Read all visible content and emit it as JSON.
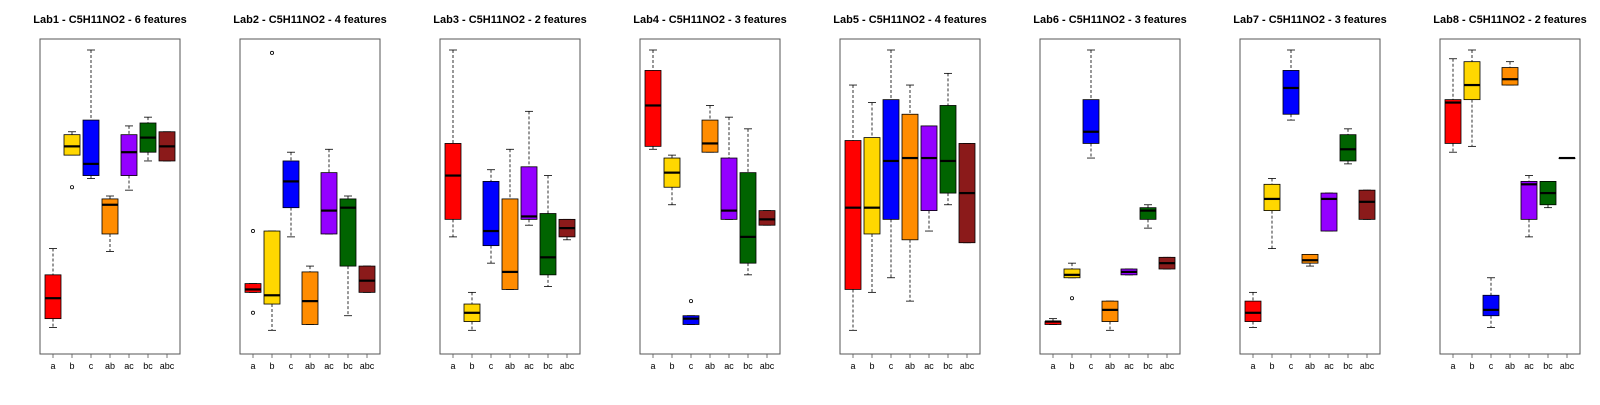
{
  "chart_data": [
    {
      "type": "box",
      "title": "Lab1 - C5H11NO2 - 6 features",
      "categories": [
        "a",
        "b",
        "c",
        "ab",
        "ac",
        "bc",
        "abc"
      ],
      "colors": [
        "#ff0000",
        "#ffd700",
        "#0000ff",
        "#ff8c00",
        "#9400ff",
        "#006400",
        "#8b1a1a"
      ],
      "ylim": [
        0,
        1
      ],
      "boxes": [
        {
          "whisker_low": 0.05,
          "q1": 0.08,
          "median": 0.15,
          "q3": 0.23,
          "whisker_high": 0.32,
          "outliers": []
        },
        {
          "whisker_low": 0.64,
          "q1": 0.64,
          "median": 0.67,
          "q3": 0.71,
          "whisker_high": 0.72,
          "outliers": [
            0.53
          ]
        },
        {
          "whisker_low": 0.56,
          "q1": 0.57,
          "median": 0.61,
          "q3": 0.76,
          "whisker_high": 1.0,
          "outliers": []
        },
        {
          "whisker_low": 0.31,
          "q1": 0.37,
          "median": 0.47,
          "q3": 0.49,
          "whisker_high": 0.5,
          "outliers": []
        },
        {
          "whisker_low": 0.52,
          "q1": 0.57,
          "median": 0.65,
          "q3": 0.71,
          "whisker_high": 0.74,
          "outliers": []
        },
        {
          "whisker_low": 0.62,
          "q1": 0.65,
          "median": 0.7,
          "q3": 0.75,
          "whisker_high": 0.77,
          "outliers": []
        },
        {
          "whisker_low": 0.62,
          "q1": 0.62,
          "median": 0.67,
          "q3": 0.72,
          "whisker_high": 0.72,
          "outliers": []
        }
      ]
    },
    {
      "type": "box",
      "title": "Lab2 - C5H11NO2 - 4 features",
      "categories": [
        "a",
        "b",
        "c",
        "ab",
        "ac",
        "bc",
        "abc"
      ],
      "colors": [
        "#ff0000",
        "#ffd700",
        "#0000ff",
        "#ff8c00",
        "#9400ff",
        "#006400",
        "#8b1a1a"
      ],
      "ylim": [
        0,
        1
      ],
      "boxes": [
        {
          "whisker_low": 0.17,
          "q1": 0.17,
          "median": 0.18,
          "q3": 0.2,
          "whisker_high": 0.2,
          "outliers": [
            0.38,
            0.1
          ]
        },
        {
          "whisker_low": 0.04,
          "q1": 0.13,
          "median": 0.16,
          "q3": 0.38,
          "whisker_high": 0.38,
          "outliers": [
            0.99
          ]
        },
        {
          "whisker_low": 0.36,
          "q1": 0.46,
          "median": 0.55,
          "q3": 0.62,
          "whisker_high": 0.65,
          "outliers": []
        },
        {
          "whisker_low": 0.06,
          "q1": 0.06,
          "median": 0.14,
          "q3": 0.24,
          "whisker_high": 0.26,
          "outliers": []
        },
        {
          "whisker_low": 0.37,
          "q1": 0.37,
          "median": 0.45,
          "q3": 0.58,
          "whisker_high": 0.66,
          "outliers": []
        },
        {
          "whisker_low": 0.09,
          "q1": 0.26,
          "median": 0.46,
          "q3": 0.49,
          "whisker_high": 0.5,
          "outliers": []
        },
        {
          "whisker_low": 0.17,
          "q1": 0.17,
          "median": 0.21,
          "q3": 0.26,
          "whisker_high": 0.26,
          "outliers": []
        }
      ]
    },
    {
      "type": "box",
      "title": "Lab3 - C5H11NO2 - 2 features",
      "categories": [
        "a",
        "b",
        "c",
        "ab",
        "ac",
        "bc",
        "abc"
      ],
      "colors": [
        "#ff0000",
        "#ffd700",
        "#0000ff",
        "#ff8c00",
        "#9400ff",
        "#006400",
        "#8b1a1a"
      ],
      "ylim": [
        0,
        1
      ],
      "boxes": [
        {
          "whisker_low": 0.36,
          "q1": 0.42,
          "median": 0.57,
          "q3": 0.68,
          "whisker_high": 1.0,
          "outliers": []
        },
        {
          "whisker_low": 0.04,
          "q1": 0.07,
          "median": 0.1,
          "q3": 0.13,
          "whisker_high": 0.17,
          "outliers": []
        },
        {
          "whisker_low": 0.27,
          "q1": 0.33,
          "median": 0.38,
          "q3": 0.55,
          "whisker_high": 0.59,
          "outliers": []
        },
        {
          "whisker_low": 0.18,
          "q1": 0.18,
          "median": 0.24,
          "q3": 0.49,
          "whisker_high": 0.66,
          "outliers": []
        },
        {
          "whisker_low": 0.4,
          "q1": 0.42,
          "median": 0.43,
          "q3": 0.6,
          "whisker_high": 0.79,
          "outliers": []
        },
        {
          "whisker_low": 0.19,
          "q1": 0.23,
          "median": 0.29,
          "q3": 0.44,
          "whisker_high": 0.57,
          "outliers": []
        },
        {
          "whisker_low": 0.35,
          "q1": 0.36,
          "median": 0.39,
          "q3": 0.42,
          "whisker_high": 0.42,
          "outliers": []
        }
      ]
    },
    {
      "type": "box",
      "title": "Lab4 - C5H11NO2 - 3 features",
      "categories": [
        "a",
        "b",
        "c",
        "ab",
        "ac",
        "bc",
        "abc"
      ],
      "colors": [
        "#ff0000",
        "#ffd700",
        "#0000ff",
        "#ff8c00",
        "#9400ff",
        "#006400",
        "#8b1a1a"
      ],
      "ylim": [
        0,
        1
      ],
      "boxes": [
        {
          "whisker_low": 0.66,
          "q1": 0.67,
          "median": 0.81,
          "q3": 0.93,
          "whisker_high": 1.0,
          "outliers": []
        },
        {
          "whisker_low": 0.47,
          "q1": 0.53,
          "median": 0.58,
          "q3": 0.63,
          "whisker_high": 0.64,
          "outliers": []
        },
        {
          "whisker_low": 0.06,
          "q1": 0.06,
          "median": 0.08,
          "q3": 0.09,
          "whisker_high": 0.09,
          "outliers": [
            0.14
          ]
        },
        {
          "whisker_low": 0.65,
          "q1": 0.65,
          "median": 0.68,
          "q3": 0.76,
          "whisker_high": 0.81,
          "outliers": []
        },
        {
          "whisker_low": 0.42,
          "q1": 0.42,
          "median": 0.45,
          "q3": 0.63,
          "whisker_high": 0.77,
          "outliers": []
        },
        {
          "whisker_low": 0.23,
          "q1": 0.27,
          "median": 0.36,
          "q3": 0.58,
          "whisker_high": 0.73,
          "outliers": []
        },
        {
          "whisker_low": 0.4,
          "q1": 0.4,
          "median": 0.42,
          "q3": 0.45,
          "whisker_high": 0.45,
          "outliers": []
        }
      ]
    },
    {
      "type": "box",
      "title": "Lab5 - C5H11NO2 - 4 features",
      "categories": [
        "a",
        "b",
        "c",
        "ab",
        "ac",
        "bc",
        "abc"
      ],
      "colors": [
        "#ff0000",
        "#ffd700",
        "#0000ff",
        "#ff8c00",
        "#9400ff",
        "#006400",
        "#8b1a1a"
      ],
      "ylim": [
        0,
        1
      ],
      "boxes": [
        {
          "whisker_low": 0.04,
          "q1": 0.18,
          "median": 0.46,
          "q3": 0.69,
          "whisker_high": 0.88,
          "outliers": []
        },
        {
          "whisker_low": 0.17,
          "q1": 0.37,
          "median": 0.46,
          "q3": 0.7,
          "whisker_high": 0.82,
          "outliers": []
        },
        {
          "whisker_low": 0.22,
          "q1": 0.42,
          "median": 0.62,
          "q3": 0.83,
          "whisker_high": 1.0,
          "outliers": []
        },
        {
          "whisker_low": 0.14,
          "q1": 0.35,
          "median": 0.63,
          "q3": 0.78,
          "whisker_high": 0.88,
          "outliers": []
        },
        {
          "whisker_low": 0.38,
          "q1": 0.45,
          "median": 0.63,
          "q3": 0.74,
          "whisker_high": 0.74,
          "outliers": []
        },
        {
          "whisker_low": 0.47,
          "q1": 0.51,
          "median": 0.62,
          "q3": 0.81,
          "whisker_high": 0.92,
          "outliers": []
        },
        {
          "whisker_low": 0.34,
          "q1": 0.34,
          "median": 0.51,
          "q3": 0.68,
          "whisker_high": 0.68,
          "outliers": []
        }
      ]
    },
    {
      "type": "box",
      "title": "Lab6 - C5H11NO2 - 3 features",
      "categories": [
        "a",
        "b",
        "c",
        "ab",
        "ac",
        "bc",
        "abc"
      ],
      "colors": [
        "#ff0000",
        "#ffd700",
        "#0000ff",
        "#ff8c00",
        "#9400ff",
        "#006400",
        "#8b1a1a"
      ],
      "ylim": [
        0,
        1
      ],
      "boxes": [
        {
          "whisker_low": 0.06,
          "q1": 0.06,
          "median": 0.07,
          "q3": 0.07,
          "whisker_high": 0.08,
          "outliers": []
        },
        {
          "whisker_low": 0.22,
          "q1": 0.22,
          "median": 0.23,
          "q3": 0.25,
          "whisker_high": 0.27,
          "outliers": [
            0.15
          ]
        },
        {
          "whisker_low": 0.63,
          "q1": 0.68,
          "median": 0.72,
          "q3": 0.83,
          "whisker_high": 1.0,
          "outliers": []
        },
        {
          "whisker_low": 0.04,
          "q1": 0.07,
          "median": 0.11,
          "q3": 0.14,
          "whisker_high": 0.14,
          "outliers": []
        },
        {
          "whisker_low": 0.23,
          "q1": 0.23,
          "median": 0.24,
          "q3": 0.25,
          "whisker_high": 0.25,
          "outliers": []
        },
        {
          "whisker_low": 0.39,
          "q1": 0.42,
          "median": 0.45,
          "q3": 0.46,
          "whisker_high": 0.47,
          "outliers": []
        },
        {
          "whisker_low": 0.25,
          "q1": 0.25,
          "median": 0.27,
          "q3": 0.29,
          "whisker_high": 0.29,
          "outliers": []
        }
      ]
    },
    {
      "type": "box",
      "title": "Lab7 - C5H11NO2 - 3 features",
      "categories": [
        "a",
        "b",
        "c",
        "ab",
        "ac",
        "bc",
        "abc"
      ],
      "colors": [
        "#ff0000",
        "#ffd700",
        "#0000ff",
        "#ff8c00",
        "#9400ff",
        "#006400",
        "#8b1a1a"
      ],
      "ylim": [
        0,
        1
      ],
      "boxes": [
        {
          "whisker_low": 0.05,
          "q1": 0.07,
          "median": 0.1,
          "q3": 0.14,
          "whisker_high": 0.17,
          "outliers": []
        },
        {
          "whisker_low": 0.32,
          "q1": 0.45,
          "median": 0.49,
          "q3": 0.54,
          "whisker_high": 0.56,
          "outliers": []
        },
        {
          "whisker_low": 0.76,
          "q1": 0.78,
          "median": 0.87,
          "q3": 0.93,
          "whisker_high": 1.0,
          "outliers": []
        },
        {
          "whisker_low": 0.26,
          "q1": 0.27,
          "median": 0.28,
          "q3": 0.3,
          "whisker_high": 0.3,
          "outliers": []
        },
        {
          "whisker_low": 0.38,
          "q1": 0.38,
          "median": 0.49,
          "q3": 0.51,
          "whisker_high": 0.51,
          "outliers": []
        },
        {
          "whisker_low": 0.61,
          "q1": 0.62,
          "median": 0.66,
          "q3": 0.71,
          "whisker_high": 0.73,
          "outliers": []
        },
        {
          "whisker_low": 0.42,
          "q1": 0.42,
          "median": 0.48,
          "q3": 0.52,
          "whisker_high": 0.52,
          "outliers": []
        }
      ]
    },
    {
      "type": "box",
      "title": "Lab8 - C5H11NO2 - 2 features",
      "categories": [
        "a",
        "b",
        "c",
        "ab",
        "ac",
        "bc",
        "abc"
      ],
      "colors": [
        "#ff0000",
        "#ffd700",
        "#0000ff",
        "#ff8c00",
        "#9400ff",
        "#006400",
        "#8b1a1a"
      ],
      "ylim": [
        0,
        1
      ],
      "boxes": [
        {
          "whisker_low": 0.65,
          "q1": 0.68,
          "median": 0.82,
          "q3": 0.83,
          "whisker_high": 0.97,
          "outliers": []
        },
        {
          "whisker_low": 0.67,
          "q1": 0.83,
          "median": 0.88,
          "q3": 0.96,
          "whisker_high": 1.0,
          "outliers": []
        },
        {
          "whisker_low": 0.05,
          "q1": 0.09,
          "median": 0.11,
          "q3": 0.16,
          "whisker_high": 0.22,
          "outliers": []
        },
        {
          "whisker_low": 0.88,
          "q1": 0.88,
          "median": 0.9,
          "q3": 0.94,
          "whisker_high": 0.96,
          "outliers": []
        },
        {
          "whisker_low": 0.36,
          "q1": 0.42,
          "median": 0.54,
          "q3": 0.55,
          "whisker_high": 0.57,
          "outliers": []
        },
        {
          "whisker_low": 0.46,
          "q1": 0.47,
          "median": 0.51,
          "q3": 0.55,
          "whisker_high": 0.55,
          "outliers": []
        },
        {
          "whisker_low": 0.63,
          "q1": 0.63,
          "median": 0.63,
          "q3": 0.63,
          "whisker_high": 0.63,
          "outliers": []
        }
      ]
    }
  ]
}
